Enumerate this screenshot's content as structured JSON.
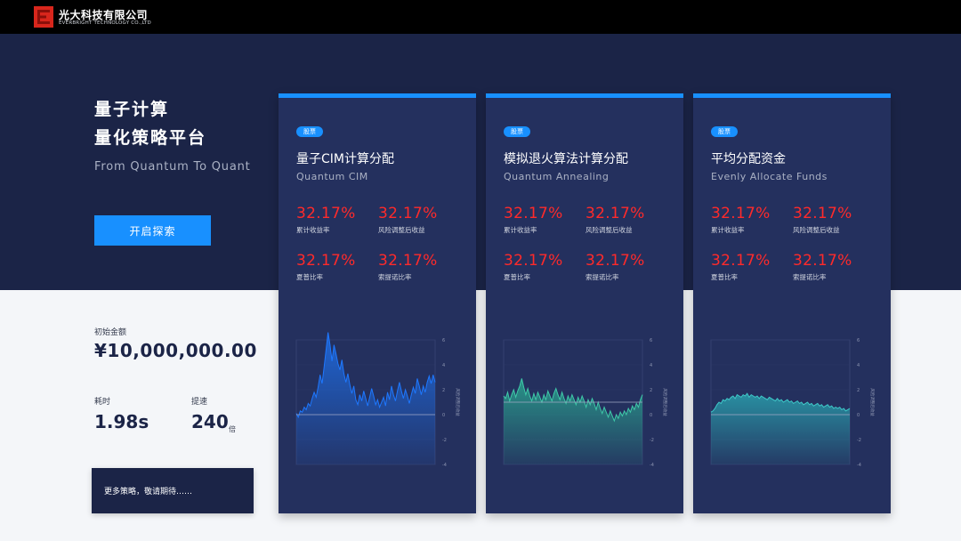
{
  "header": {
    "logo_cn": "光大科技有限公司",
    "logo_en": "EVERBRIGHT TECHNOLOGY CO.,LTD"
  },
  "hero": {
    "title_line1": "量子计算",
    "title_line2": "量化策略平台",
    "subtitle": "From Quantum To Quant",
    "explore_button": "开启探索"
  },
  "stats": {
    "initial_label": "初始金额",
    "initial_value": "¥10,000,000.00",
    "time_label": "耗时",
    "time_value": "1.98s",
    "speedup_label": "提速",
    "speedup_value": "240",
    "speedup_unit": "倍",
    "more_text": "更多策略，敬请期待……"
  },
  "colors": {
    "accent": "#1890ff",
    "navy": "#1b2447",
    "card_bg": "#24305e",
    "metric_red": "#ff2a2a"
  },
  "cards": [
    {
      "tag": "股票",
      "title": "量子CIM计算分配",
      "subtitle": "Quantum CIM",
      "metrics": [
        {
          "value": "32.17%",
          "label": "累计收益率"
        },
        {
          "value": "32.17%",
          "label": "风险调整后收益"
        },
        {
          "value": "32.17%",
          "label": "夏普比率"
        },
        {
          "value": "32.17%",
          "label": "索提诺比率"
        }
      ],
      "chart_data": {
        "type": "area",
        "ylabel": "风险调整后收益",
        "y_ticks": [
          "6",
          "4",
          "2",
          "0",
          "-2",
          "-4"
        ],
        "ylim": [
          -4,
          6
        ],
        "baseline": 0,
        "line_color": "#1e78ff",
        "fill_color": "#1e6ee8",
        "values": [
          0.1,
          -0.2,
          0.3,
          0.2,
          0.6,
          0.4,
          0.9,
          0.7,
          1.3,
          1.8,
          1.4,
          2.2,
          3.2,
          2.5,
          3.8,
          5.2,
          6.6,
          5.6,
          4.3,
          5.6,
          4.9,
          4.1,
          3.6,
          4.4,
          3.3,
          2.6,
          3.3,
          2.4,
          1.7,
          2.3,
          1.2,
          0.8,
          1.6,
          1.1,
          1.9,
          1.3,
          0.7,
          1.4,
          2.1,
          1.5,
          0.8,
          1.2,
          0.6,
          1.0,
          1.4,
          0.7,
          1.8,
          1.2,
          2.3,
          1.6,
          1.1,
          1.9,
          2.6,
          1.9,
          1.3,
          2.0,
          1.5,
          0.9,
          1.6,
          2.2,
          1.7,
          2.9,
          2.3,
          1.6,
          2.3,
          1.8,
          2.6,
          3.1,
          2.5,
          3.2,
          2.6
        ]
      }
    },
    {
      "tag": "股票",
      "title": "模拟退火算法计算分配",
      "subtitle": "Quantum Annealing",
      "metrics": [
        {
          "value": "32.17%",
          "label": "累计收益率"
        },
        {
          "value": "32.17%",
          "label": "风险调整后收益"
        },
        {
          "value": "32.17%",
          "label": "夏普比率"
        },
        {
          "value": "32.17%",
          "label": "索提诺比率"
        }
      ],
      "chart_data": {
        "type": "area",
        "ylabel": "风险调整后收益",
        "y_ticks": [
          "6",
          "4",
          "2",
          "0",
          "-2",
          "-4"
        ],
        "ylim": [
          -4,
          6
        ],
        "baseline": 1,
        "line_color": "#3fc8a8",
        "fill_color": "#2aa58f",
        "values": [
          1.5,
          1.3,
          1.8,
          1.1,
          1.6,
          2.0,
          1.4,
          1.9,
          2.3,
          2.9,
          2.2,
          1.6,
          2.1,
          1.5,
          1.1,
          1.7,
          1.2,
          1.8,
          1.4,
          1.0,
          1.6,
          1.2,
          1.9,
          1.5,
          1.1,
          1.7,
          2.1,
          1.6,
          1.2,
          1.8,
          1.3,
          0.9,
          1.5,
          1.1,
          1.6,
          1.2,
          0.8,
          1.4,
          1.0,
          1.5,
          1.1,
          0.6,
          1.2,
          0.8,
          1.3,
          0.9,
          0.4,
          1.0,
          0.5,
          0.1,
          0.6,
          0.2,
          -0.2,
          0.3,
          -0.1,
          -0.5,
          0.0,
          -0.3,
          0.2,
          -0.1,
          0.3,
          0.0,
          0.5,
          0.2,
          0.7,
          0.4,
          0.9,
          0.6,
          1.2,
          1.6
        ]
      }
    },
    {
      "tag": "股票",
      "title": "平均分配资金",
      "subtitle": "Evenly Allocate Funds",
      "metrics": [
        {
          "value": "32.17%",
          "label": "累计收益率"
        },
        {
          "value": "32.17%",
          "label": "风险调整后收益"
        },
        {
          "value": "32.17%",
          "label": "夏普比率"
        },
        {
          "value": "32.17%",
          "label": "索提诺比率"
        }
      ],
      "chart_data": {
        "type": "area",
        "ylabel": "风险调整后收益",
        "y_ticks": [
          "6",
          "4",
          "2",
          "0",
          "-2",
          "-4"
        ],
        "ylim": [
          -4,
          6
        ],
        "baseline": 0,
        "line_color": "#3fc8c8",
        "fill_color": "#2aa0ad",
        "values": [
          0.2,
          0.3,
          0.5,
          0.8,
          1.0,
          0.9,
          1.2,
          1.1,
          1.3,
          1.2,
          1.4,
          1.5,
          1.3,
          1.6,
          1.5,
          1.4,
          1.6,
          1.5,
          1.7,
          1.4,
          1.6,
          1.5,
          1.4,
          1.5,
          1.3,
          1.5,
          1.4,
          1.3,
          1.2,
          1.4,
          1.3,
          1.2,
          1.1,
          1.3,
          1.1,
          1.2,
          1.0,
          1.1,
          1.2,
          1.0,
          1.1,
          0.9,
          1.0,
          1.1,
          0.9,
          1.0,
          0.8,
          0.9,
          1.0,
          0.8,
          0.9,
          0.7,
          0.8,
          0.9,
          0.7,
          0.8,
          0.6,
          0.7,
          0.8,
          0.6,
          0.7,
          0.5,
          0.6,
          0.5,
          0.6,
          0.4,
          0.5,
          0.3,
          0.4,
          0.5
        ]
      }
    }
  ]
}
